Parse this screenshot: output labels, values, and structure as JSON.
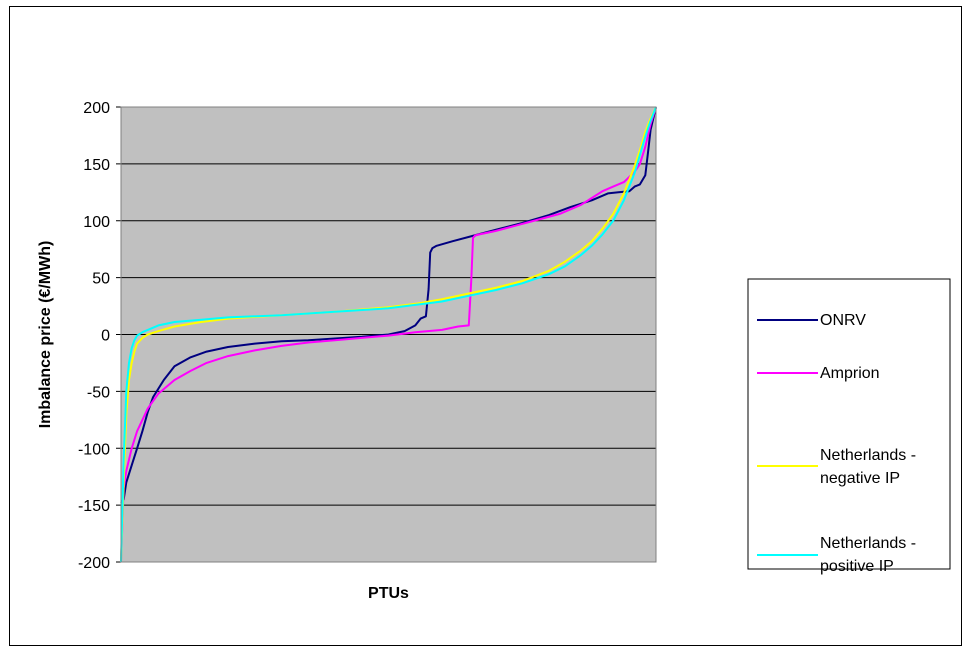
{
  "chart_data": {
    "type": "line",
    "title": "",
    "xlabel": "PTUs",
    "ylabel": "Imbalance price (€/MWh)",
    "ylim": [
      -200,
      200
    ],
    "xlim": [
      0,
      100
    ],
    "yticks": [
      "200",
      "150",
      "100",
      "50",
      "0",
      "-50",
      "-100",
      "-150",
      "-200"
    ],
    "grid": true,
    "legend": "right",
    "plot_background": "#c0c0c0",
    "series": [
      {
        "name": "ONRV",
        "color": "#000080",
        "x": [
          0,
          0.5,
          1,
          2,
          3,
          4,
          5,
          6,
          8,
          10,
          13,
          16,
          20,
          25,
          30,
          35,
          40,
          45,
          50,
          53,
          55,
          56,
          57,
          57.5,
          57.8,
          58.2,
          59,
          62,
          66,
          70,
          75,
          80,
          84,
          88,
          91,
          93,
          95,
          96,
          97,
          98,
          98.5,
          99,
          100
        ],
        "y": [
          -148,
          -145,
          -130,
          -115,
          -100,
          -85,
          -68,
          -55,
          -40,
          -28,
          -20,
          -15,
          -11,
          -8,
          -6,
          -5,
          -3.5,
          -2,
          0,
          3,
          8,
          14,
          16,
          40,
          72,
          76,
          78,
          82,
          87,
          92,
          98,
          105,
          112,
          118,
          124,
          125,
          126,
          130,
          132,
          140,
          160,
          180,
          200
        ]
      },
      {
        "name": "Amprion",
        "color": "#ff00ff",
        "x": [
          0,
          0.5,
          1,
          2,
          3,
          5,
          7,
          10,
          13,
          16,
          20,
          25,
          30,
          35,
          40,
          45,
          50,
          55,
          60,
          63,
          65,
          65.5,
          65.8,
          66.2,
          67,
          70,
          74,
          78,
          82,
          86,
          88,
          90,
          92,
          94,
          96,
          97,
          98,
          99,
          100
        ],
        "y": [
          -200,
          -135,
          -120,
          -100,
          -85,
          -65,
          -52,
          -40,
          -32,
          -25,
          -19,
          -14,
          -10,
          -7,
          -5,
          -3,
          -1,
          2,
          4,
          7,
          8,
          50,
          85,
          87,
          88,
          91,
          96,
          101,
          106,
          114,
          120,
          126,
          130,
          134,
          143,
          150,
          165,
          185,
          200
        ]
      },
      {
        "name": "Netherlands - negative IP",
        "color": "#ffff00",
        "x": [
          0,
          0.5,
          1,
          1.5,
          2,
          2.5,
          3,
          4,
          5,
          7,
          10,
          15,
          20,
          30,
          40,
          50,
          55,
          60,
          65,
          70,
          75,
          80,
          83,
          86,
          88,
          90,
          92,
          94,
          96,
          97,
          98,
          99,
          100
        ],
        "y": [
          -200,
          -130,
          -70,
          -40,
          -25,
          -15,
          -8,
          -3,
          0,
          3,
          7,
          11,
          14,
          17,
          20,
          24,
          27,
          31,
          36,
          41,
          47,
          56,
          64,
          74,
          82,
          93,
          106,
          124,
          148,
          162,
          178,
          190,
          200
        ]
      },
      {
        "name": "Netherlands - positive IP",
        "color": "#00ffff",
        "x": [
          0,
          0.5,
          1,
          1.5,
          2,
          2.5,
          3,
          4,
          5,
          7,
          10,
          15,
          20,
          30,
          40,
          50,
          55,
          60,
          65,
          70,
          75,
          80,
          83,
          86,
          88,
          90,
          92,
          94,
          96,
          97,
          98,
          99,
          100
        ],
        "y": [
          -200,
          -110,
          -50,
          -25,
          -12,
          -5,
          -1,
          2,
          4,
          8,
          11,
          13,
          15,
          17,
          20,
          23,
          26,
          29,
          34,
          39,
          45,
          53,
          60,
          70,
          78,
          88,
          100,
          118,
          142,
          158,
          174,
          188,
          200
        ]
      }
    ]
  }
}
